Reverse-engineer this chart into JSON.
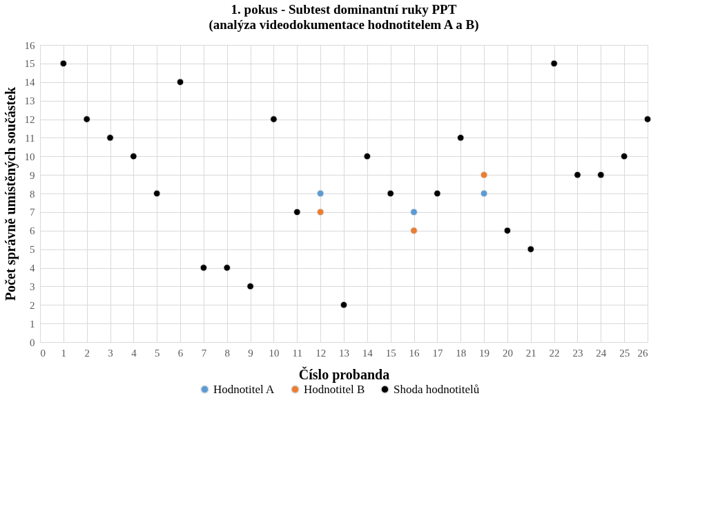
{
  "chart_data": {
    "type": "scatter",
    "title": "1. pokus - Subtest dominantní ruky PPT",
    "subtitle": "(analýza videodokumentace hodnotitelem A a B)",
    "xlabel": "Číslo probanda",
    "ylabel": "Počet správně umístěných součástek",
    "xlim": [
      0,
      26
    ],
    "xticks": [
      0,
      1,
      2,
      3,
      4,
      5,
      6,
      7,
      8,
      9,
      10,
      11,
      12,
      13,
      14,
      15,
      16,
      17,
      18,
      19,
      20,
      21,
      22,
      23,
      24,
      25,
      26
    ],
    "ylim": [
      0,
      16
    ],
    "yticks": [
      0,
      1,
      2,
      3,
      4,
      5,
      6,
      7,
      8,
      9,
      10,
      11,
      12,
      13,
      14,
      15,
      16
    ],
    "grid": true,
    "legend": "bottom",
    "marker": "circle",
    "series": [
      {
        "name": "Hodnotitel A",
        "color": "#5b9bd5",
        "x": [
          12,
          16,
          19
        ],
        "values": [
          8,
          7,
          8
        ]
      },
      {
        "name": "Hodnotitel B",
        "color": "#ed7d31",
        "x": [
          12,
          16,
          19
        ],
        "values": [
          7,
          6,
          9
        ]
      },
      {
        "name": "Shoda hodnotitelů",
        "color": "#000000",
        "x": [
          1,
          2,
          3,
          4,
          5,
          6,
          7,
          8,
          9,
          10,
          11,
          13,
          14,
          15,
          17,
          18,
          20,
          21,
          22,
          23,
          24,
          25,
          26
        ],
        "values": [
          15,
          12,
          11,
          10,
          8,
          14,
          4,
          4,
          3,
          12,
          7,
          2,
          10,
          8,
          8,
          11,
          6,
          5,
          15,
          9,
          9,
          10,
          12
        ]
      }
    ]
  }
}
